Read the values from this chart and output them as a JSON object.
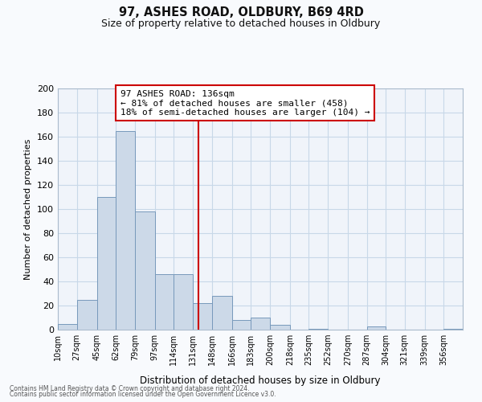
{
  "title": "97, ASHES ROAD, OLDBURY, B69 4RD",
  "subtitle": "Size of property relative to detached houses in Oldbury",
  "xlabel": "Distribution of detached houses by size in Oldbury",
  "ylabel": "Number of detached properties",
  "bin_labels": [
    "10sqm",
    "27sqm",
    "45sqm",
    "62sqm",
    "79sqm",
    "97sqm",
    "114sqm",
    "131sqm",
    "148sqm",
    "166sqm",
    "183sqm",
    "200sqm",
    "218sqm",
    "235sqm",
    "252sqm",
    "270sqm",
    "287sqm",
    "304sqm",
    "321sqm",
    "339sqm",
    "356sqm"
  ],
  "bin_edges": [
    10,
    27,
    45,
    62,
    79,
    97,
    114,
    131,
    148,
    166,
    183,
    200,
    218,
    235,
    252,
    270,
    287,
    304,
    321,
    339,
    356,
    373
  ],
  "bar_heights": [
    5,
    25,
    110,
    165,
    98,
    46,
    46,
    22,
    28,
    8,
    10,
    4,
    0,
    1,
    0,
    0,
    3,
    0,
    0,
    0,
    1
  ],
  "bar_color": "#ccd9e8",
  "bar_edge_color": "#7799bb",
  "grid_color": "#c8d8e8",
  "background_color": "#f8fafd",
  "plot_bg_color": "#f0f4fa",
  "vline_x": 136,
  "vline_color": "#cc0000",
  "annotation_line1": "97 ASHES ROAD: 136sqm",
  "annotation_line2": "← 81% of detached houses are smaller (458)",
  "annotation_line3": "18% of semi-detached houses are larger (104) →",
  "annotation_box_color": "#ffffff",
  "annotation_border_color": "#cc0000",
  "ylim": [
    0,
    200
  ],
  "yticks": [
    0,
    20,
    40,
    60,
    80,
    100,
    120,
    140,
    160,
    180,
    200
  ],
  "footnote1": "Contains HM Land Registry data © Crown copyright and database right 2024.",
  "footnote2": "Contains public sector information licensed under the Open Government Licence v3.0."
}
